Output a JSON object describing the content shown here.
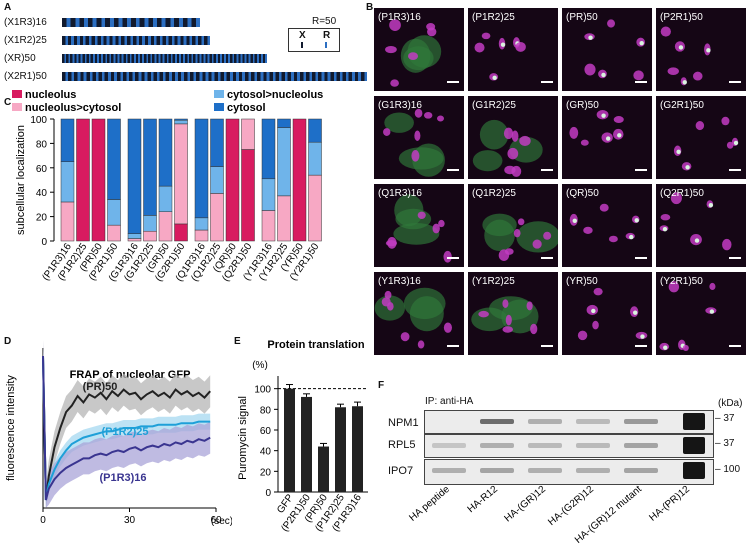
{
  "panel_letters": {
    "a": "A",
    "b": "B",
    "c": "C",
    "d": "D",
    "e": "E",
    "f": "F"
  },
  "panel_a": {
    "constructs": [
      {
        "label": "(X1R3)16",
        "units": 16
      },
      {
        "label": "(X1R2)25",
        "units": 25
      },
      {
        "label": "(XR)50",
        "units": 50
      },
      {
        "label": "(X2R1)50",
        "units": 50
      }
    ],
    "legend": {
      "title": "R=50",
      "x": "X",
      "r": "R"
    },
    "colors": {
      "x": "#111a2e",
      "r": "#2c6fc2"
    }
  },
  "panel_b": {
    "rows": [
      [
        "(P1R3)16",
        "(P1R2)25",
        "(PR)50",
        "(P2R1)50"
      ],
      [
        "(G1R3)16",
        "(G1R2)25",
        "(GR)50",
        "(G2R1)50"
      ],
      [
        "(Q1R3)16",
        "(Q1R2)25",
        "(QR)50",
        "(Q2R1)50"
      ],
      [
        "(Y1R3)16",
        "(Y1R2)25",
        "(YR)50",
        "(Y2R1)50"
      ]
    ]
  },
  "chart_data": [
    {
      "type": "bar",
      "subtype": "stacked-percent",
      "title": "",
      "ylabel": "subcellular localization",
      "ylim": [
        0,
        100
      ],
      "yticks": [
        0,
        20,
        40,
        60,
        80,
        100
      ],
      "legend_position": "top",
      "series": [
        {
          "name": "nucleolus",
          "color": "#d81b60"
        },
        {
          "name": "nucleolus>cytosol",
          "color": "#f7a8c4"
        },
        {
          "name": "cytosol>nucleolus",
          "color": "#6fb4ea"
        },
        {
          "name": "cytosol",
          "color": "#1e6fc8"
        }
      ],
      "groups": [
        {
          "bars": [
            {
              "label": "(P1R3)16",
              "values": [
                0,
                32,
                33,
                35
              ]
            },
            {
              "label": "(P1R2)25",
              "values": [
                100,
                0,
                0,
                0
              ]
            },
            {
              "label": "(PR)50",
              "values": [
                100,
                0,
                0,
                0
              ]
            },
            {
              "label": "(P2R1)50",
              "values": [
                0,
                13,
                21,
                66
              ]
            }
          ]
        },
        {
          "bars": [
            {
              "label": "(G1R3)16",
              "values": [
                0,
                2,
                4,
                94
              ]
            },
            {
              "label": "(G1R2)25",
              "values": [
                0,
                8,
                13,
                79
              ]
            },
            {
              "label": "(GR)50",
              "values": [
                0,
                24,
                21,
                55
              ]
            },
            {
              "label": "(G2R1)50",
              "values": [
                14,
                82,
                3,
                1
              ]
            }
          ]
        },
        {
          "bars": [
            {
              "label": "(Q1R3)16",
              "values": [
                0,
                9,
                10,
                81
              ]
            },
            {
              "label": "(Q1R2)25",
              "values": [
                0,
                39,
                22,
                39
              ]
            },
            {
              "label": "(QR)50",
              "values": [
                100,
                0,
                0,
                0
              ]
            },
            {
              "label": "(Q2R1)50",
              "values": [
                75,
                25,
                0,
                0
              ]
            }
          ]
        },
        {
          "bars": [
            {
              "label": "(Y1R3)16",
              "values": [
                0,
                25,
                26,
                49
              ]
            },
            {
              "label": "(Y1R2)25",
              "values": [
                0,
                37,
                56,
                7
              ]
            },
            {
              "label": "(YR)50",
              "values": [
                100,
                0,
                0,
                0
              ]
            },
            {
              "label": "(Y2R1)50",
              "values": [
                0,
                54,
                27,
                19
              ]
            }
          ]
        }
      ]
    },
    {
      "type": "line",
      "title": "FRAP of nucleolar GFP",
      "ylabel": "fluorescence intensity",
      "xlabel": "(sec)",
      "xlim": [
        0,
        60
      ],
      "xticks": [
        0,
        30,
        60
      ],
      "series": [
        {
          "name": "(PR)50",
          "color": "#222222",
          "band": "#b5b5b5",
          "x": [
            0,
            1,
            2,
            4,
            6,
            8,
            10,
            12,
            14,
            16,
            18,
            20,
            22,
            24,
            26,
            28,
            30,
            32,
            34,
            36,
            38,
            40,
            42,
            44,
            46,
            48,
            50,
            52,
            54,
            56,
            58
          ],
          "y": [
            0.95,
            0.05,
            0.2,
            0.38,
            0.5,
            0.6,
            0.64,
            0.7,
            0.66,
            0.71,
            0.69,
            0.72,
            0.68,
            0.73,
            0.7,
            0.74,
            0.71,
            0.72,
            0.68,
            0.71,
            0.73,
            0.7,
            0.72,
            0.69,
            0.74,
            0.71,
            0.73,
            0.7,
            0.72,
            0.69,
            0.73
          ]
        },
        {
          "name": "(P1R2)25",
          "color": "#1ea0d8",
          "band": "#a6d8f0",
          "x": [
            0,
            1,
            2,
            4,
            6,
            8,
            10,
            12,
            14,
            16,
            18,
            20,
            22,
            24,
            26,
            28,
            30,
            32,
            34,
            36,
            38,
            40,
            42,
            44,
            46,
            48,
            50,
            52,
            54,
            56,
            58
          ],
          "y": [
            0.95,
            0.05,
            0.15,
            0.24,
            0.31,
            0.36,
            0.4,
            0.42,
            0.44,
            0.45,
            0.46,
            0.47,
            0.48,
            0.48,
            0.49,
            0.5,
            0.5,
            0.5,
            0.51,
            0.51,
            0.51,
            0.52,
            0.52,
            0.52,
            0.52,
            0.53,
            0.53,
            0.53,
            0.54,
            0.54,
            0.54
          ]
        },
        {
          "name": "(P1R3)16",
          "color": "#3a3590",
          "band": "#a9a4d8",
          "x": [
            0,
            1,
            2,
            4,
            6,
            8,
            10,
            12,
            14,
            16,
            18,
            20,
            22,
            24,
            26,
            28,
            30,
            32,
            34,
            36,
            38,
            40,
            42,
            44,
            46,
            48,
            50,
            52,
            54,
            56,
            58
          ],
          "y": [
            0.95,
            0.05,
            0.12,
            0.18,
            0.22,
            0.25,
            0.27,
            0.29,
            0.31,
            0.31,
            0.33,
            0.34,
            0.33,
            0.35,
            0.36,
            0.35,
            0.37,
            0.38,
            0.36,
            0.38,
            0.39,
            0.38,
            0.4,
            0.39,
            0.41,
            0.4,
            0.42,
            0.41,
            0.43,
            0.42,
            0.44
          ]
        }
      ]
    },
    {
      "type": "bar",
      "title": "Protein translation",
      "ylabel": "Puromycin signal",
      "unit_label": "(%)",
      "ylim": [
        0,
        120
      ],
      "yticks": [
        0,
        20,
        40,
        60,
        80,
        100
      ],
      "reference_line": 100,
      "categories": [
        "GFP",
        "(P2R1)50",
        "(PR)50",
        "(P1R2)25",
        "(P1R3)16"
      ],
      "values": [
        100,
        92,
        44,
        82,
        83
      ],
      "errors": [
        4,
        3,
        3,
        3,
        4
      ],
      "color": "#222222"
    }
  ],
  "panel_f": {
    "title": "IP: anti-HA",
    "kda_label": "(kDa)",
    "rows": [
      {
        "name": "NPM1",
        "marker": "37"
      },
      {
        "name": "RPL5",
        "marker": "37"
      },
      {
        "name": "IPO7",
        "marker": "100"
      }
    ],
    "lanes": [
      "HA peptide",
      "HA-R12",
      "HA-(GR)12",
      "HA-(G2R)12",
      "HA-(GR)12 mutant",
      "HA-(PR)12"
    ]
  }
}
